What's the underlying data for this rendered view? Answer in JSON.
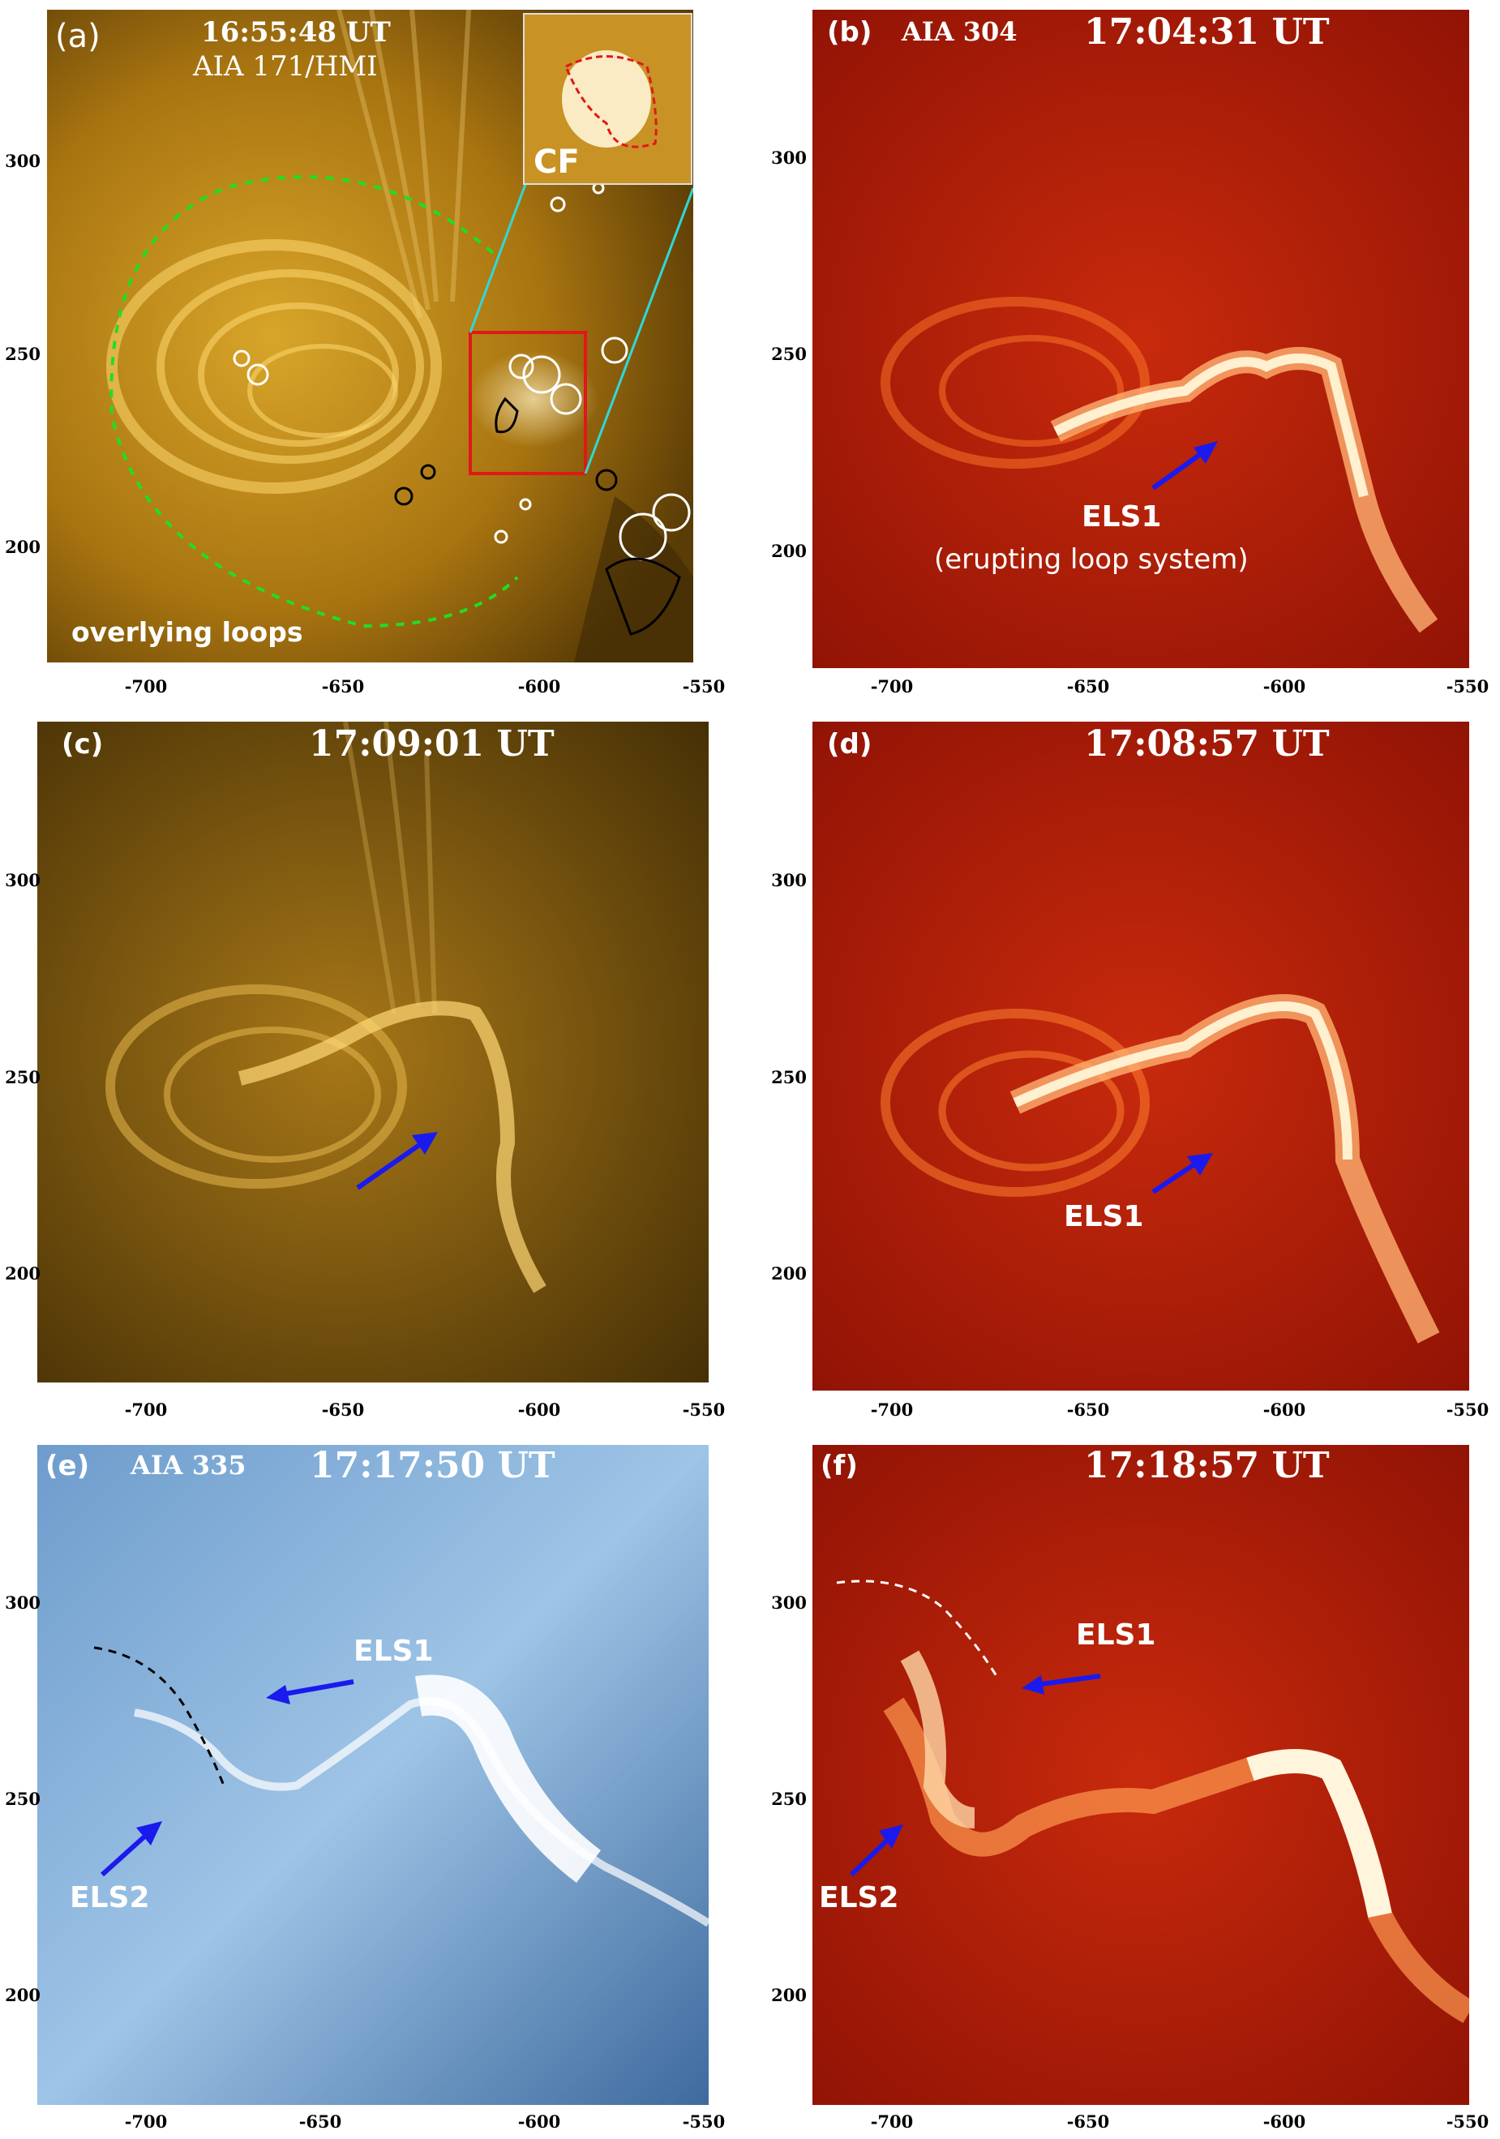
{
  "panels": {
    "a": {
      "label": "(a)",
      "time": "16:55:48 UT",
      "instrument": "AIA 171/HMI",
      "inset_label": "CF",
      "annotation": "overlying loops",
      "colors": {
        "base": "#b07a10",
        "bright": "#ffe9a8",
        "dark": "#3d2a05",
        "box": "#e01818",
        "dashed": "#22dd22",
        "connector": "#2fd8d8"
      }
    },
    "b": {
      "label": "(b)",
      "instrument": "AIA 304",
      "time": "17:04:31 UT",
      "annotation": "ELS1",
      "annotation_sub": "(erupting loop system)",
      "colors": {
        "base": "#b01808",
        "bright": "#fff0d0"
      }
    },
    "c": {
      "label": "(c)",
      "time": "17:09:01 UT",
      "colors": {
        "base": "#8a6010",
        "bright": "#ffe49a"
      }
    },
    "d": {
      "label": "(d)",
      "time": "17:08:57 UT",
      "annotation": "ELS1",
      "colors": {
        "base": "#b01808",
        "bright": "#fff0d0"
      }
    },
    "e": {
      "label": "(e)",
      "instrument": "AIA 335",
      "time": "17:17:50 UT",
      "annotation_1": "ELS1",
      "annotation_2": "ELS2",
      "colors": {
        "base": "#5a86b8",
        "bright": "#ffffff"
      }
    },
    "f": {
      "label": "(f)",
      "time": "17:18:57 UT",
      "annotation_1": "ELS1",
      "annotation_2": "ELS2",
      "colors": {
        "base": "#b82208",
        "bright": "#fff4dc"
      }
    }
  },
  "axes": {
    "x_ticks": [
      "-700",
      "-650",
      "-600",
      "-550"
    ],
    "y_ticks": [
      "300",
      "250",
      "200"
    ]
  },
  "arrow_color": "#1a1aee"
}
